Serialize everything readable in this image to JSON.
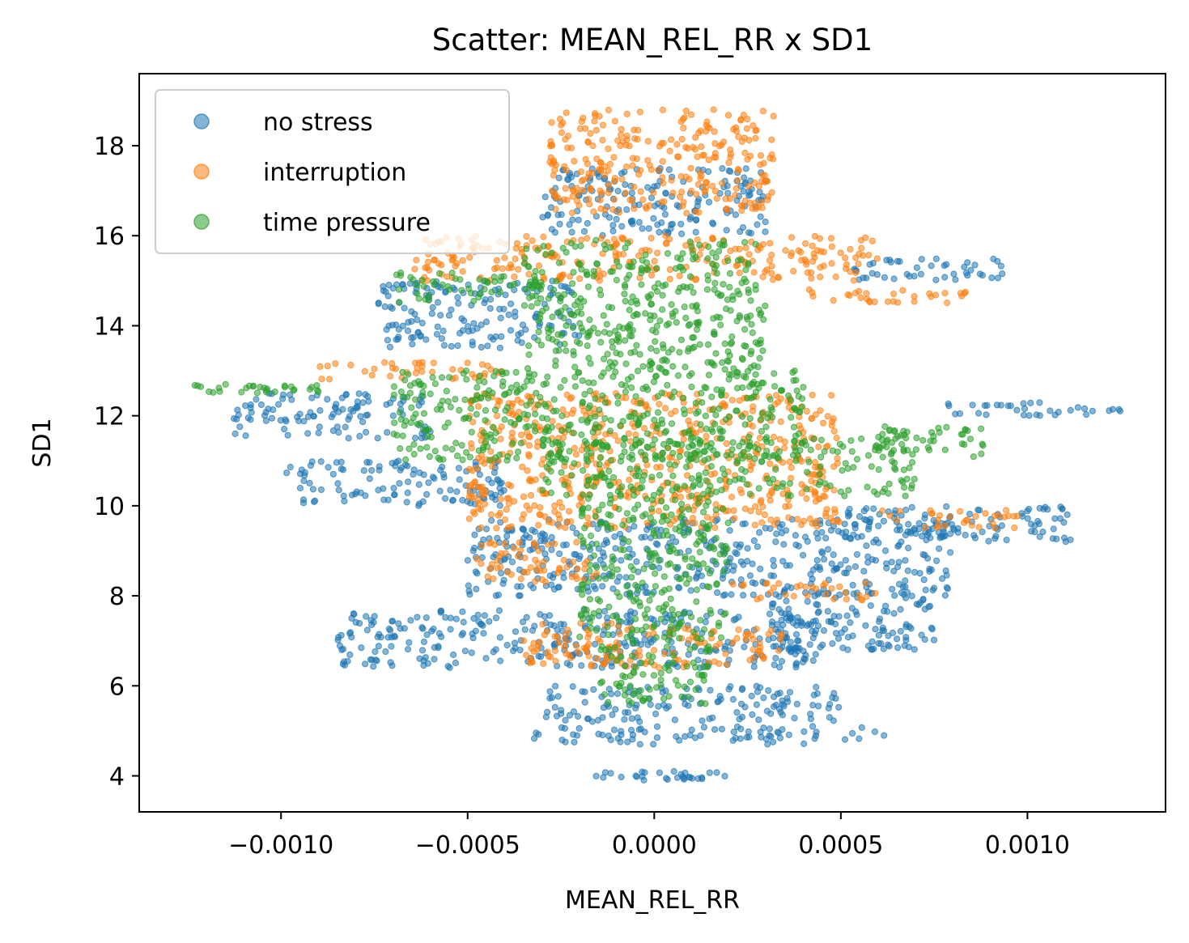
{
  "chart_data": {
    "type": "scatter",
    "title": "Scatter: MEAN_REL_RR x SD1",
    "xlabel": "MEAN_REL_RR",
    "ylabel": "SD1",
    "xlim": [
      -0.00138,
      0.00137
    ],
    "ylim": [
      3.2,
      19.6
    ],
    "xticks": [
      -0.001,
      -0.0005,
      0.0,
      0.0005,
      0.001
    ],
    "xtick_labels": [
      "−0.0010",
      "−0.0005",
      "0.0000",
      "0.0005",
      "0.0010"
    ],
    "yticks": [
      4,
      6,
      8,
      10,
      12,
      14,
      16,
      18
    ],
    "ytick_labels": [
      "4",
      "6",
      "8",
      "10",
      "12",
      "14",
      "16",
      "18"
    ],
    "grid": false,
    "legend_position": "top-left",
    "series": [
      {
        "name": "no stress",
        "color": "#1f77b4",
        "clusters": [
          {
            "x": [
              -0.0002,
              0.0002
            ],
            "y": [
              3.9,
              4.1
            ]
          },
          {
            "x": [
              -0.00033,
              0.00062
            ],
            "y": [
              4.7,
              5.1
            ]
          },
          {
            "x": [
              -0.0003,
              0.0005
            ],
            "y": [
              5.2,
              6.0
            ]
          },
          {
            "x": [
              -0.00085,
              0.00048
            ],
            "y": [
              6.4,
              7.7
            ]
          },
          {
            "x": [
              0.0003,
              0.00075
            ],
            "y": [
              6.8,
              8.1
            ]
          },
          {
            "x": [
              -0.0005,
              0.0008
            ],
            "y": [
              8.0,
              9.7
            ]
          },
          {
            "x": [
              -0.00099,
              -0.0004
            ],
            "y": [
              10.0,
              11.0
            ]
          },
          {
            "x": [
              0.0005,
              0.00112
            ],
            "y": [
              9.2,
              10.0
            ]
          },
          {
            "x": [
              -0.00113,
              -0.0006
            ],
            "y": [
              11.5,
              12.5
            ]
          },
          {
            "x": [
              0.0007,
              0.00126
            ],
            "y": [
              12.0,
              12.3
            ]
          },
          {
            "x": [
              -0.00074,
              -0.0002
            ],
            "y": [
              13.5,
              15.0
            ]
          },
          {
            "x": [
              0.0005,
              0.00095
            ],
            "y": [
              15.0,
              15.5
            ]
          },
          {
            "x": [
              -0.0003,
              0.0003
            ],
            "y": [
              16.0,
              17.5
            ]
          }
        ]
      },
      {
        "name": "interruption",
        "color": "#ff7f0e",
        "clusters": [
          {
            "x": [
              -0.00028,
              0.00032
            ],
            "y": [
              16.5,
              18.8
            ]
          },
          {
            "x": [
              -0.00065,
              0.0006
            ],
            "y": [
              15.0,
              16.0
            ]
          },
          {
            "x": [
              -0.0009,
              -0.0004
            ],
            "y": [
              12.8,
              13.2
            ]
          },
          {
            "x": [
              0.0004,
              0.00085
            ],
            "y": [
              14.5,
              14.8
            ]
          },
          {
            "x": [
              -0.0005,
              0.0005
            ],
            "y": [
              9.5,
              12.5
            ]
          },
          {
            "x": [
              0.0006,
              0.001
            ],
            "y": [
              9.5,
              9.9
            ]
          },
          {
            "x": [
              -0.00048,
              -0.00015
            ],
            "y": [
              8.3,
              9.2
            ]
          },
          {
            "x": [
              0.0002,
              0.0006
            ],
            "y": [
              7.9,
              8.3
            ]
          },
          {
            "x": [
              -0.00035,
              0.00035
            ],
            "y": [
              6.4,
              7.4
            ]
          }
        ]
      },
      {
        "name": "time pressure",
        "color": "#2ca02c",
        "clusters": [
          {
            "x": [
              -0.00035,
              0.0003
            ],
            "y": [
              13.0,
              15.9
            ]
          },
          {
            "x": [
              -0.0007,
              -0.0003
            ],
            "y": [
              14.5,
              15.2
            ]
          },
          {
            "x": [
              -0.0007,
              0.0004
            ],
            "y": [
              11.0,
              13.0
            ]
          },
          {
            "x": [
              -0.0003,
              0.0007
            ],
            "y": [
              10.2,
              11.5
            ]
          },
          {
            "x": [
              -0.0002,
              0.0002
            ],
            "y": [
              7.0,
              10.2
            ]
          },
          {
            "x": [
              -0.00015,
              0.00015
            ],
            "y": [
              5.6,
              7.0
            ]
          },
          {
            "x": [
              0.0006,
              0.0009
            ],
            "y": [
              11.0,
              11.8
            ]
          },
          {
            "x": [
              -0.00125,
              -0.0009
            ],
            "y": [
              12.5,
              12.7
            ]
          }
        ]
      }
    ]
  }
}
